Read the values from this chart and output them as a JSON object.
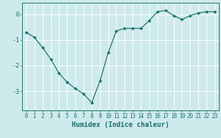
{
  "x": [
    0,
    1,
    2,
    3,
    4,
    5,
    6,
    7,
    8,
    9,
    10,
    11,
    12,
    13,
    14,
    15,
    16,
    17,
    18,
    19,
    20,
    21,
    22,
    23
  ],
  "y": [
    -0.7,
    -0.9,
    -1.3,
    -1.75,
    -2.3,
    -2.65,
    -2.9,
    -3.1,
    -3.45,
    -2.6,
    -1.5,
    -0.65,
    -0.55,
    -0.55,
    -0.55,
    -0.25,
    0.1,
    0.15,
    -0.05,
    -0.2,
    -0.05,
    0.05,
    0.1,
    0.1
  ],
  "line_color": "#1a7068",
  "marker": "D",
  "marker_size": 2.2,
  "bg_color": "#ceeaec",
  "grid_color": "#ffffff",
  "xlabel": "Humidex (Indice chaleur)",
  "xlim": [
    -0.5,
    23.5
  ],
  "ylim": [
    -3.75,
    0.45
  ],
  "yticks": [
    0,
    -1,
    -2,
    -3
  ],
  "xticks": [
    0,
    1,
    2,
    3,
    4,
    5,
    6,
    7,
    8,
    9,
    10,
    11,
    12,
    13,
    14,
    15,
    16,
    17,
    18,
    19,
    20,
    21,
    22,
    23
  ],
  "tick_color": "#1a7068",
  "label_color": "#1a7068",
  "tick_fontsize": 5.5,
  "xlabel_fontsize": 7.0
}
